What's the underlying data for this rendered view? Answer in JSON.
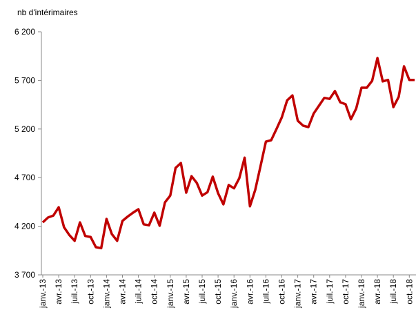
{
  "chart_data": {
    "type": "line",
    "y_label": "nb d'intérimaires",
    "categories": [
      "janv.-13",
      null,
      null,
      "avr.-13",
      null,
      null,
      "juil.-13",
      null,
      null,
      "oct.-13",
      null,
      null,
      "janv.-14",
      null,
      null,
      "avr.-14",
      null,
      null,
      "juil.-14",
      null,
      null,
      "oct.-14",
      null,
      null,
      "janv.-15",
      null,
      null,
      "avr.-15",
      null,
      null,
      "juil.-15",
      null,
      null,
      "oct.-15",
      null,
      null,
      "janv.-16",
      null,
      null,
      "avr.-16",
      null,
      null,
      "juil.-16",
      null,
      null,
      "oct.-16",
      null,
      null,
      "janv.-17",
      null,
      null,
      "avr.-17",
      null,
      null,
      "juil.-17",
      null,
      null,
      "oct.-17",
      null,
      null,
      "janv.-18",
      null,
      null,
      "avr.-18",
      null,
      null,
      "juil.-18",
      null,
      null,
      "oct.-18",
      null
    ],
    "series": [
      {
        "name": "nb d'intérimaires",
        "color": "#c00000",
        "values": [
          4240,
          4290,
          4310,
          4395,
          4190,
          4110,
          4050,
          4240,
          4100,
          4090,
          3985,
          3975,
          4275,
          4120,
          4050,
          4255,
          4300,
          4340,
          4375,
          4220,
          4210,
          4340,
          4205,
          4445,
          4515,
          4800,
          4850,
          4545,
          4715,
          4645,
          4515,
          4550,
          4710,
          4540,
          4425,
          4625,
          4590,
          4695,
          4905,
          4405,
          4575,
          4820,
          5070,
          5085,
          5200,
          5320,
          5495,
          5545,
          5285,
          5235,
          5220,
          5360,
          5440,
          5520,
          5510,
          5590,
          5475,
          5455,
          5300,
          5410,
          5625,
          5625,
          5695,
          5930,
          5690,
          5705,
          5425,
          5530,
          5845,
          5705,
          5705
        ]
      }
    ],
    "ylim": [
      3700,
      6200
    ],
    "yticks": [
      {
        "value": 3700,
        "label": "3 700"
      },
      {
        "value": 4200,
        "label": "4 200"
      },
      {
        "value": 4700,
        "label": "4 700"
      },
      {
        "value": 5200,
        "label": "5 200"
      },
      {
        "value": 5700,
        "label": "5 700"
      },
      {
        "value": 6200,
        "label": "6 200"
      }
    ],
    "grid": false
  }
}
